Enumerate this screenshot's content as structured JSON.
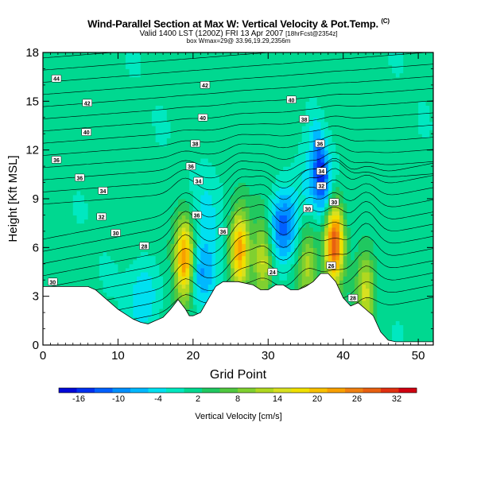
{
  "header": {
    "title": "Wind-Parallel Section at Max W: Vertical Velocity & Pot.Temp.",
    "title_unit": "(C)",
    "subtitle": "Valid 1400 LST (1200Z) FRI 13 Apr 2007",
    "subtitle_note": "[18hrFcst@2354z]",
    "subtitle2": "box Wmax=29@ 33.96,19.29,2356m"
  },
  "chart_data": {
    "type": "heatmap",
    "xlabel": "Grid Point",
    "ylabel": "Height [Kft MSL]",
    "xlim": [
      0,
      52
    ],
    "ylim": [
      0,
      18
    ],
    "xticks": [
      0,
      10,
      20,
      30,
      40,
      50
    ],
    "yticks": [
      0,
      3,
      6,
      9,
      12,
      15,
      18
    ],
    "colorbar": {
      "label": "Vertical Velocity [cm/s]",
      "min": -19,
      "max": 35,
      "ticks": [
        -16,
        -10,
        -4,
        2,
        8,
        14,
        20,
        26,
        32
      ],
      "colors": [
        "#0008d8",
        "#0030f0",
        "#0060ff",
        "#0090ff",
        "#00b8ff",
        "#00e0f0",
        "#00e8c0",
        "#00d890",
        "#20c860",
        "#50c840",
        "#80d030",
        "#b0d820",
        "#d8e020",
        "#f0e000",
        "#f8c000",
        "#f8a000",
        "#f08010",
        "#e86010",
        "#e03010",
        "#d00010"
      ]
    },
    "terrain": [
      [
        0,
        3.6
      ],
      [
        2,
        3.6
      ],
      [
        4,
        3.6
      ],
      [
        6,
        3.6
      ],
      [
        7,
        3.4
      ],
      [
        8,
        3.0
      ],
      [
        9,
        2.6
      ],
      [
        10,
        2.2
      ],
      [
        11,
        1.9
      ],
      [
        12,
        1.6
      ],
      [
        13,
        1.4
      ],
      [
        14,
        1.3
      ],
      [
        15,
        1.5
      ],
      [
        16,
        1.7
      ],
      [
        17,
        2.2
      ],
      [
        18,
        2.8
      ],
      [
        19,
        2.2
      ],
      [
        19.5,
        1.8
      ],
      [
        20,
        1.8
      ],
      [
        21,
        2.0
      ],
      [
        22,
        2.8
      ],
      [
        23,
        3.6
      ],
      [
        24,
        3.9
      ],
      [
        26,
        3.9
      ],
      [
        28,
        3.7
      ],
      [
        29,
        3.4
      ],
      [
        30,
        3.4
      ],
      [
        31,
        3.7
      ],
      [
        32,
        3.7
      ],
      [
        33,
        3.4
      ],
      [
        34,
        3.4
      ],
      [
        35,
        3.6
      ],
      [
        36,
        3.9
      ],
      [
        37,
        4.4
      ],
      [
        38,
        4.4
      ],
      [
        39,
        3.9
      ],
      [
        40,
        2.9
      ],
      [
        41,
        2.4
      ],
      [
        42,
        2.6
      ],
      [
        43,
        2.2
      ],
      [
        44,
        1.8
      ],
      [
        45,
        0.8
      ],
      [
        46,
        0.3
      ],
      [
        47,
        0.2
      ],
      [
        48,
        0.2
      ],
      [
        50,
        0.2
      ],
      [
        52,
        0.2
      ]
    ],
    "wind_updraft_cores": [
      {
        "x": 18.9,
        "y": 5.3,
        "w": 24
      },
      {
        "x": 26.2,
        "y": 5.9,
        "w": 22
      },
      {
        "x": 29.3,
        "y": 5.2,
        "w": 14
      },
      {
        "x": 38.8,
        "y": 6.4,
        "w": 29
      },
      {
        "x": 43.0,
        "y": 3.4,
        "w": 14
      },
      {
        "x": 35.2,
        "y": 4.9,
        "w": 10
      }
    ],
    "wind_downdraft_cores": [
      {
        "x": 13.4,
        "y": 3.2,
        "w": -6
      },
      {
        "x": 21.0,
        "y": 4.4,
        "w": -10
      },
      {
        "x": 32.0,
        "y": 7.3,
        "w": -14
      },
      {
        "x": 36.8,
        "y": 10.0,
        "w": -10
      },
      {
        "x": 22.0,
        "y": 8.5,
        "w": -4
      }
    ],
    "theta_labels": [
      {
        "x": 1.8,
        "y": 16.4,
        "text": "44"
      },
      {
        "x": 21.6,
        "y": 16.0,
        "text": "42"
      },
      {
        "x": 5.9,
        "y": 14.9,
        "text": "42"
      },
      {
        "x": 33.1,
        "y": 15.1,
        "text": "40"
      },
      {
        "x": 5.8,
        "y": 13.1,
        "text": "40"
      },
      {
        "x": 21.3,
        "y": 14.0,
        "text": "40"
      },
      {
        "x": 34.8,
        "y": 13.9,
        "text": "38"
      },
      {
        "x": 1.8,
        "y": 11.4,
        "text": "36"
      },
      {
        "x": 20.3,
        "y": 12.4,
        "text": "38"
      },
      {
        "x": 36.9,
        "y": 12.4,
        "text": "36"
      },
      {
        "x": 19.7,
        "y": 11.0,
        "text": "36"
      },
      {
        "x": 4.9,
        "y": 10.3,
        "text": "36"
      },
      {
        "x": 37.1,
        "y": 10.7,
        "text": "34"
      },
      {
        "x": 20.7,
        "y": 10.1,
        "text": "34"
      },
      {
        "x": 8.0,
        "y": 9.5,
        "text": "34"
      },
      {
        "x": 37.1,
        "y": 9.8,
        "text": "32"
      },
      {
        "x": 38.8,
        "y": 8.8,
        "text": "30"
      },
      {
        "x": 35.3,
        "y": 8.4,
        "text": "30"
      },
      {
        "x": 20.5,
        "y": 8.0,
        "text": "36"
      },
      {
        "x": 7.8,
        "y": 7.9,
        "text": "32"
      },
      {
        "x": 24.0,
        "y": 7.0,
        "text": "36"
      },
      {
        "x": 9.7,
        "y": 6.9,
        "text": "30"
      },
      {
        "x": 13.5,
        "y": 6.1,
        "text": "28"
      },
      {
        "x": 30.6,
        "y": 4.5,
        "text": "24"
      },
      {
        "x": 38.4,
        "y": 4.9,
        "text": "26"
      },
      {
        "x": 1.3,
        "y": 3.9,
        "text": "30"
      },
      {
        "x": 41.3,
        "y": 2.9,
        "text": "28"
      }
    ]
  }
}
